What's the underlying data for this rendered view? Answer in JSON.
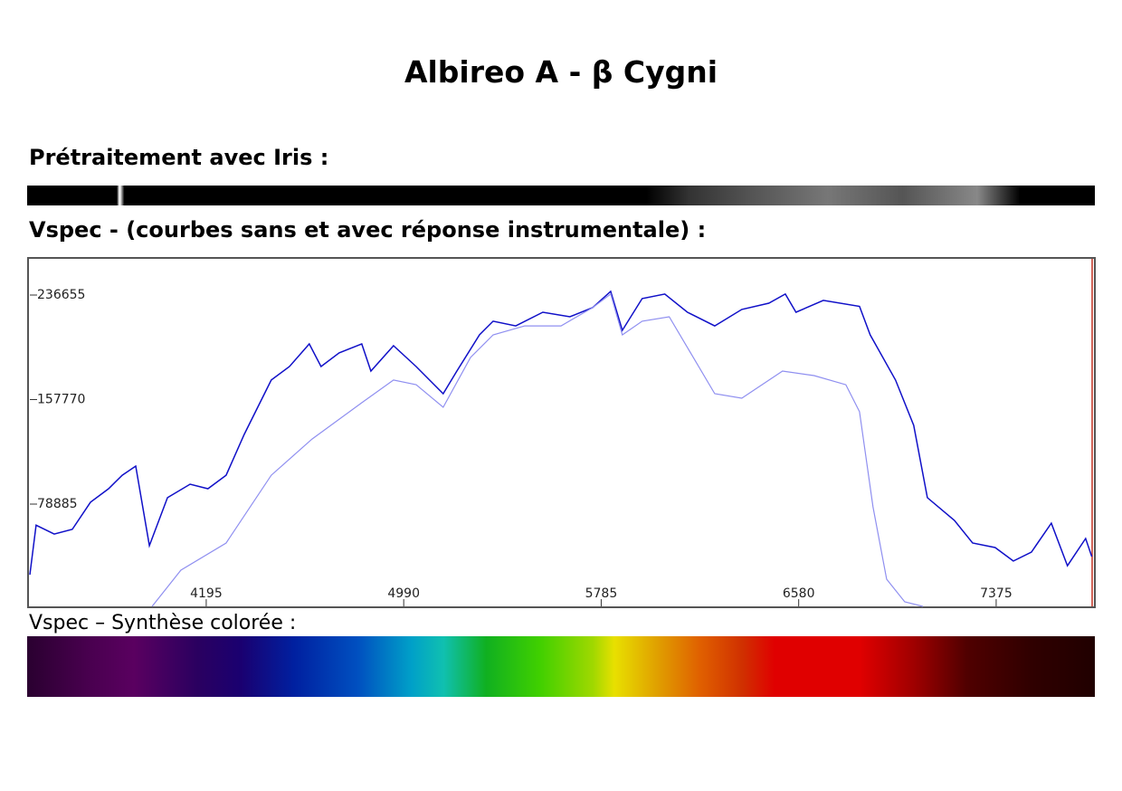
{
  "header": {
    "title": "Albireo A - β Cygni"
  },
  "sections": [
    {
      "heading": "Prétraitement avec Iris :"
    },
    {
      "heading": "Vspec - (courbes sans et avec réponse instrumentale) :"
    },
    {
      "heading": "Vspec – Synthèse colorée :"
    }
  ],
  "chart_data": {
    "type": "line",
    "xlim": [
      3485,
      7765
    ],
    "ylim": [
      1700,
      263300
    ],
    "xticks": [
      4195,
      4990,
      5785,
      6580,
      7375
    ],
    "yticks": [
      78885,
      157770,
      236655
    ],
    "series": [
      {
        "color": "#1010c8",
        "x": [
          3485,
          3510,
          3583,
          3656,
          3729,
          3802,
          3857,
          3911,
          3966,
          4039,
          4130,
          4202,
          4275,
          4348,
          4457,
          4530,
          4610,
          4657,
          4730,
          4821,
          4858,
          4949,
          5040,
          5149,
          5204,
          5295,
          5350,
          5441,
          5550,
          5659,
          5750,
          5823,
          5870,
          5950,
          6041,
          6132,
          6242,
          6351,
          6460,
          6526,
          6569,
          6679,
          6825,
          6868,
          6970,
          7043,
          7098,
          7207,
          7280,
          7371,
          7444,
          7517,
          7597,
          7662,
          7735,
          7760
        ],
        "values": [
          25600,
          63000,
          56300,
          59800,
          80300,
          90500,
          100700,
          107600,
          47500,
          83700,
          93900,
          90500,
          100700,
          131500,
          172500,
          182700,
          199800,
          182700,
          193000,
          199800,
          179300,
          198400,
          182700,
          162200,
          179300,
          206600,
          216900,
          213400,
          223700,
          220300,
          227100,
          239400,
          210000,
          234000,
          237400,
          223700,
          213400,
          225800,
          230500,
          237400,
          223700,
          232600,
          228100,
          206600,
          172500,
          138300,
          83700,
          66600,
          49500,
          46100,
          35900,
          42700,
          64500,
          32400,
          52900,
          39300
        ]
      },
      {
        "color": "#8f8ff0",
        "x": [
          3977,
          4093,
          4275,
          4457,
          4621,
          4821,
          4949,
          5040,
          5149,
          5259,
          5350,
          5477,
          5623,
          5750,
          5823,
          5870,
          5950,
          6059,
          6242,
          6351,
          6515,
          6642,
          6770,
          6825,
          6879,
          6934,
          7007,
          7080
        ],
        "values": [
          1700,
          29000,
          49500,
          100700,
          128000,
          155400,
          172500,
          169000,
          152000,
          189500,
          206600,
          213400,
          213400,
          227100,
          237400,
          206600,
          216900,
          220300,
          162200,
          158800,
          179300,
          175900,
          169000,
          148600,
          76800,
          22200,
          5100,
          1700
        ]
      }
    ]
  }
}
